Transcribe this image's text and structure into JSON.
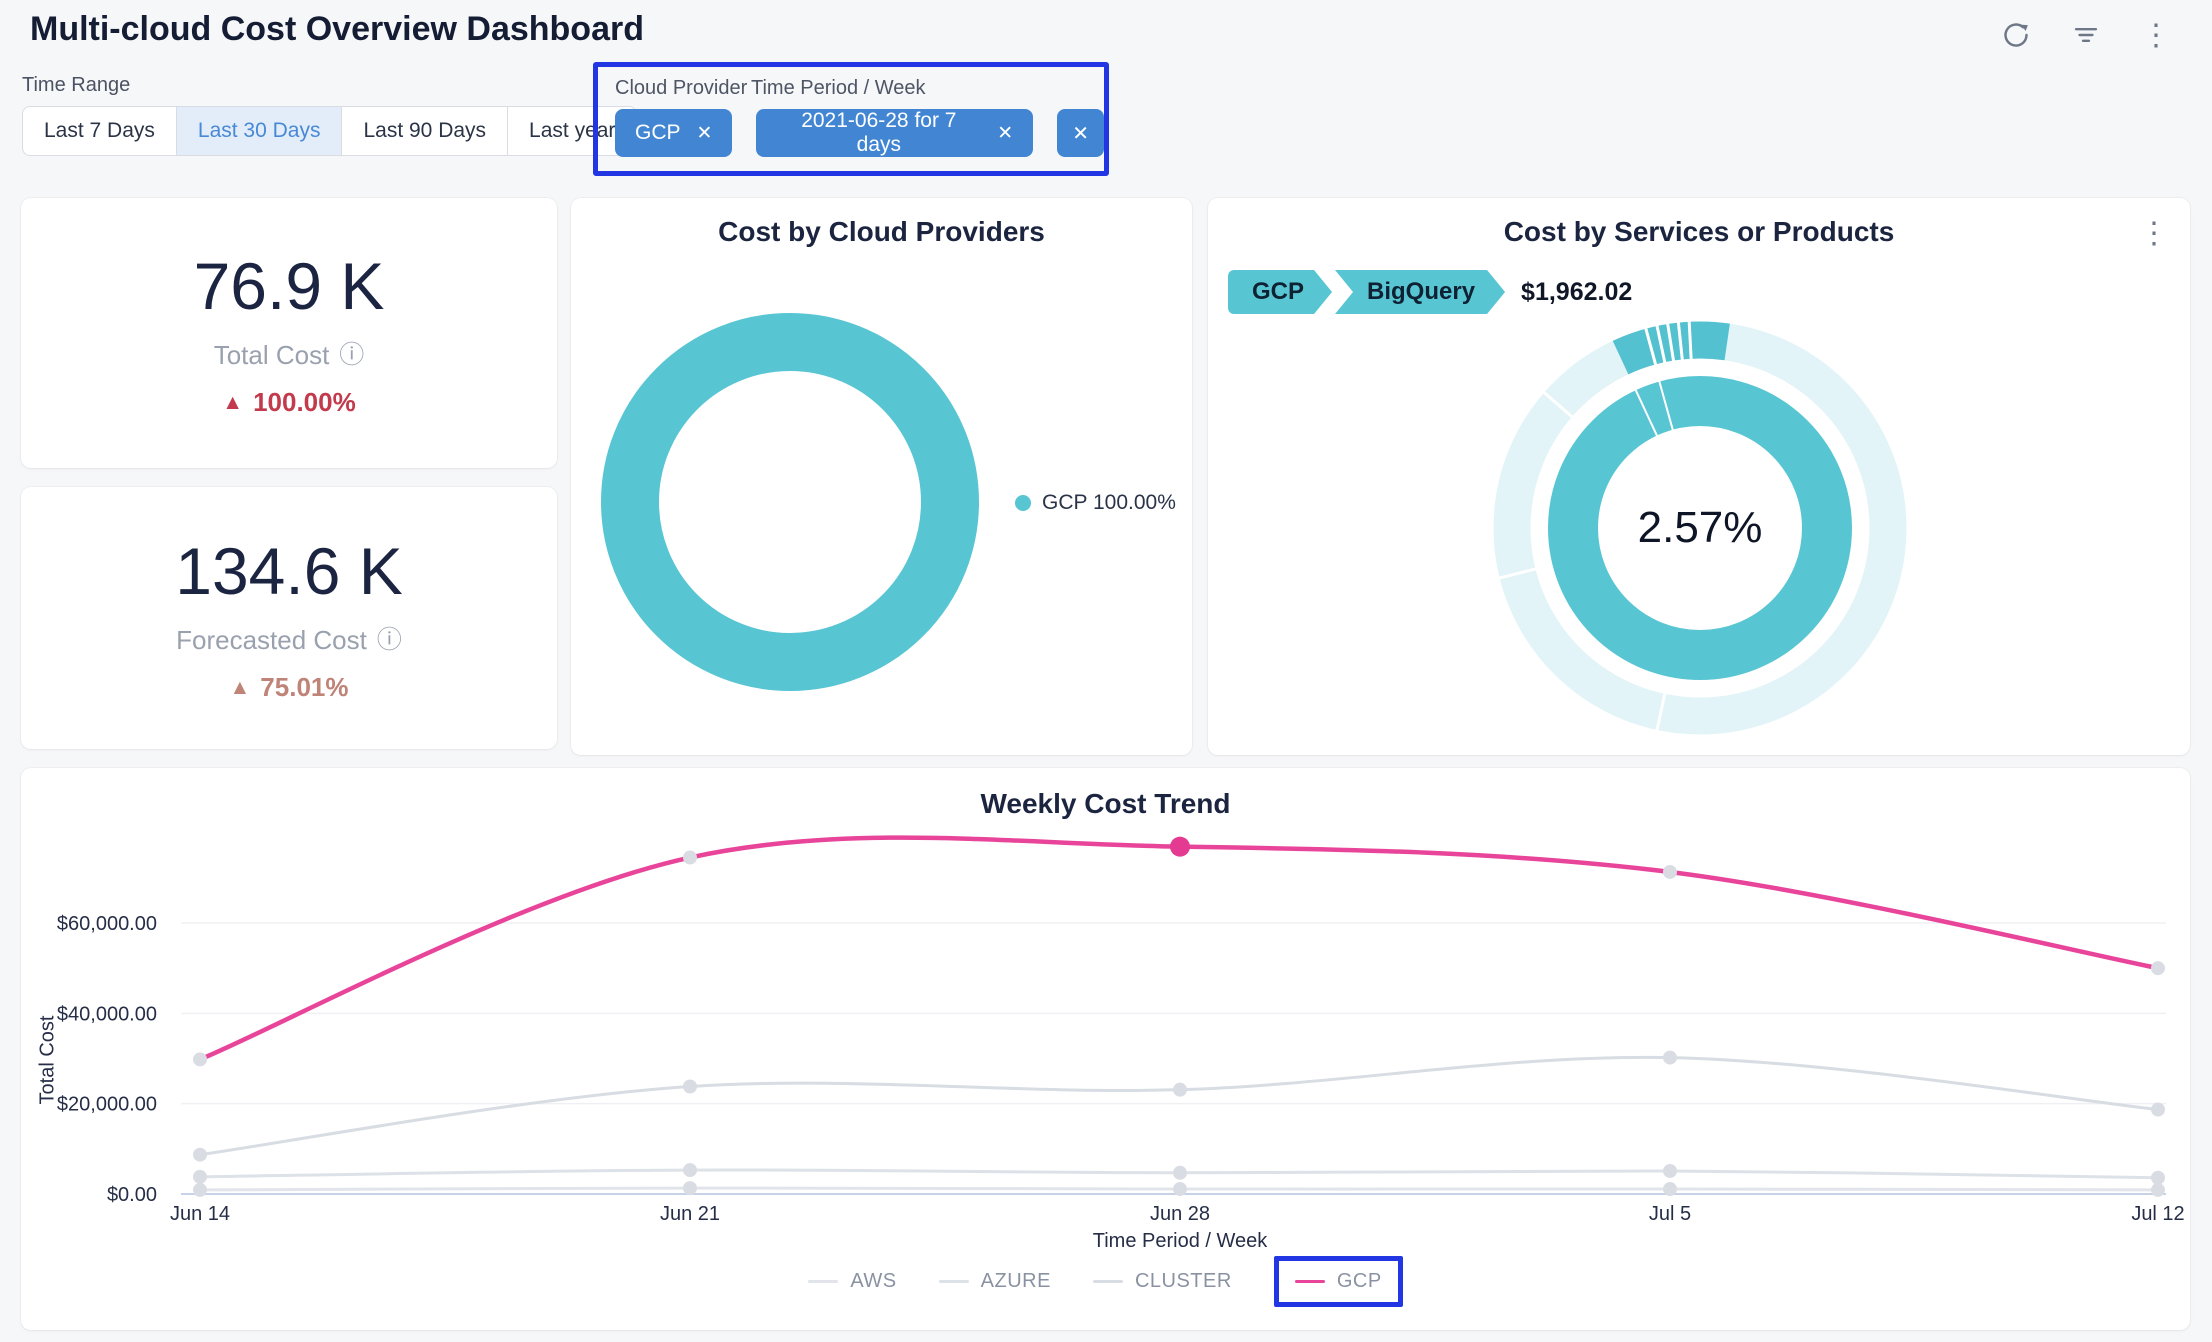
{
  "colors": {
    "accent_blue": "#4286d3",
    "annotation_blue": "#2336e3",
    "active_tab_blue": "#4789d6",
    "teal": "#58c5d3",
    "teal_light": "#e2f4f8",
    "pink": "#e8459a",
    "delta_red": "#c23a4b",
    "delta_salmon": "#bf8378",
    "title_navy": "#1c2540",
    "page_background": "#f6f7f9"
  },
  "icons": {
    "close": "✕",
    "delta_up": "▲",
    "info": "ⓘ",
    "kebab": "⋮"
  },
  "header": {
    "title": "Multi-cloud Cost Overview Dashboard"
  },
  "filters": {
    "time_range": {
      "label": "Time Range",
      "options": [
        {
          "label": "Last 7 Days",
          "active": false
        },
        {
          "label": "Last 30 Days",
          "active": true
        },
        {
          "label": "Last 90 Days",
          "active": false
        },
        {
          "label": "Last year",
          "active": false
        }
      ]
    },
    "applied": {
      "cloud_provider_label": "Cloud Provider",
      "time_period_label": "Time Period / Week",
      "cloud_provider_chip": "GCP",
      "time_period_chip": "2021-06-28 for 7 days"
    }
  },
  "kpis": [
    {
      "value": "76.9 K",
      "label": "Total Cost",
      "delta": "100.00%"
    },
    {
      "value": "134.6 K",
      "label": "Forecasted Cost",
      "delta": "75.01%"
    }
  ],
  "chart_data": [
    {
      "type": "pie",
      "style": "donut",
      "title": "Cost by Cloud Providers",
      "slices": [
        {
          "label": "GCP",
          "value": 100.0,
          "color": "#58c5d3"
        }
      ],
      "legend_label": "GCP 100.00%",
      "legend_position": "right"
    },
    {
      "type": "pie",
      "style": "double-donut",
      "title": "Cost by Services or Products",
      "breadcrumb": {
        "provider": "GCP",
        "service": "BigQuery",
        "amount": "$1,962.02"
      },
      "center_label": "2.57%",
      "highlight_pct": 2.57,
      "highlight_start_deg": 335,
      "highlight_color": "#53c1d0",
      "ring_color": "#58c5d3",
      "ring_light_color": "#e2f4f8",
      "outer_divider_angles_deg": [
        192,
        256,
        311,
        344.8,
        348,
        351,
        354,
        357
      ],
      "inner_divider_angles_deg": [
        335,
        344.5
      ]
    },
    {
      "type": "line",
      "title": "Weekly Cost Trend",
      "xlabel": "Time Period / Week",
      "ylabel": "Total Cost",
      "x": [
        "Jun 14",
        "Jun 21",
        "Jun 28",
        "Jul 5",
        "Jul 12"
      ],
      "yticks": [
        {
          "value": 0,
          "label": "$0.00"
        },
        {
          "value": 20000,
          "label": "$20,000.00"
        },
        {
          "value": 40000,
          "label": "$40,000.00"
        },
        {
          "value": 60000,
          "label": "$60,000.00"
        }
      ],
      "ylim": [
        0,
        81000
      ],
      "grid": true,
      "legend_position": "bottom",
      "series": [
        {
          "name": "AWS",
          "color": "#e1e4ea",
          "values": [
            900,
            1300,
            1100,
            1100,
            900
          ]
        },
        {
          "name": "AZURE",
          "color": "#dde1e8",
          "values": [
            3800,
            5300,
            4700,
            5100,
            3600
          ]
        },
        {
          "name": "CLUSTER",
          "color": "#d8dce3",
          "values": [
            8700,
            23800,
            23100,
            30200,
            18700
          ]
        },
        {
          "name": "GCP",
          "color": "#e8459a",
          "values": [
            29800,
            74500,
            76900,
            71300,
            50000
          ]
        }
      ],
      "selected_point": {
        "series": "GCP",
        "x": "Jun 28"
      },
      "point_color": "#d9dde3",
      "selected_point_color": "#e53a92"
    }
  ]
}
